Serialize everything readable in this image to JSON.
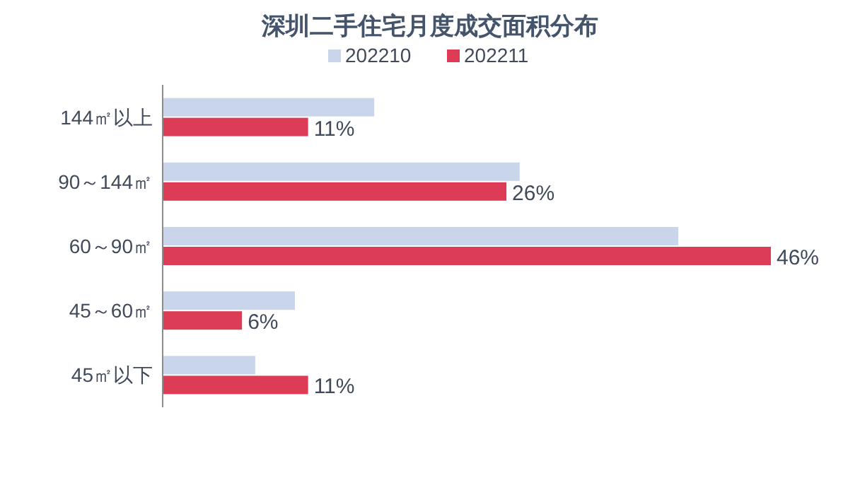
{
  "chart_data": {
    "type": "bar",
    "orientation": "horizontal",
    "title": "深圳二手住宅月度成交面积分布",
    "legend": "top",
    "categories": [
      "144㎡以上",
      "90～144㎡",
      "60～90㎡",
      "45～60㎡",
      "45㎡以下"
    ],
    "series": [
      {
        "name": "202210",
        "color": "#c9d5ea",
        "values": [
          16,
          27,
          39,
          10,
          7
        ]
      },
      {
        "name": "202211",
        "color": "#dc3c55",
        "values": [
          11,
          26,
          46,
          6,
          11
        ],
        "value_labels": [
          "11%",
          "26%",
          "46%",
          "6%",
          "11%"
        ]
      }
    ]
  }
}
